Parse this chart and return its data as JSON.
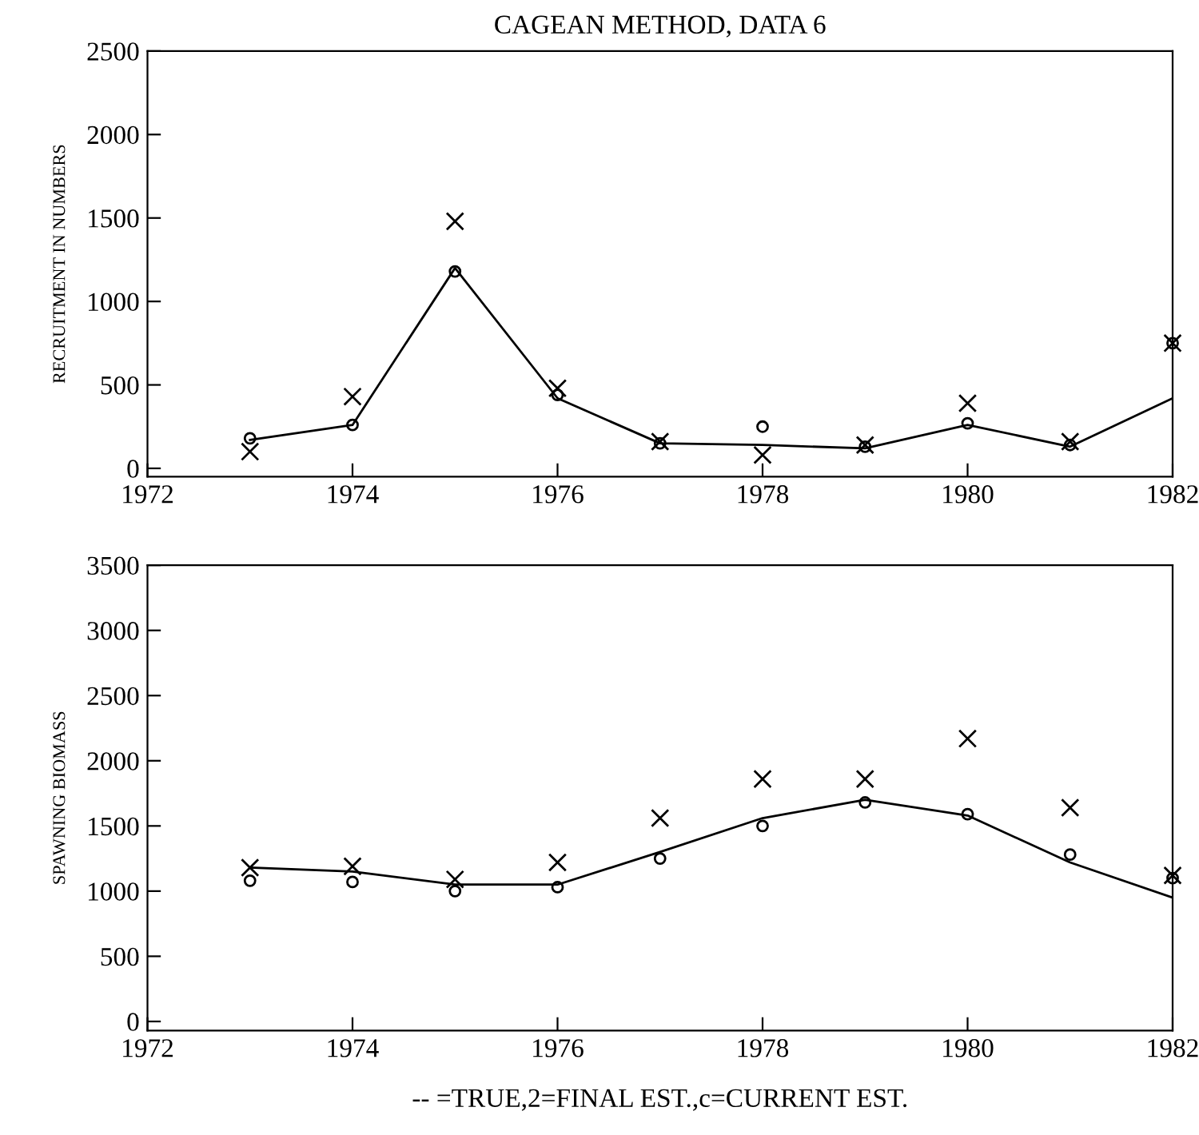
{
  "chart_data": [
    {
      "type": "line",
      "title": "CAGEAN METHOD, DATA 6",
      "ylabel": "RECRUITMENT IN NUMBERS",
      "x": [
        1973,
        1974,
        1975,
        1976,
        1977,
        1978,
        1979,
        1980,
        1981,
        1982
      ],
      "xlim": [
        1972,
        1982
      ],
      "xticks": [
        1972,
        1974,
        1976,
        1978,
        1980,
        1982
      ],
      "ylim": [
        -50,
        2500
      ],
      "yticks": [
        0,
        500,
        1000,
        1500,
        2000,
        2500
      ],
      "grid": false,
      "legend": false,
      "series": [
        {
          "marker": "none",
          "color": "#000000",
          "values": [
            170,
            260,
            1200,
            420,
            150,
            140,
            120,
            260,
            130,
            420
          ]
        },
        {
          "type": "scatter",
          "marker": "circle",
          "color": "#000000",
          "values": [
            180,
            260,
            1180,
            440,
            150,
            250,
            130,
            270,
            140,
            750
          ]
        },
        {
          "type": "scatter",
          "marker": "cross",
          "color": "#000000",
          "values": [
            100,
            430,
            1480,
            480,
            160,
            80,
            140,
            390,
            160,
            750
          ]
        }
      ]
    },
    {
      "type": "line",
      "ylabel": "SPAWNING BIOMASS",
      "annotations": [
        "-- =TRUE,2=FINAL EST.,c=CURRENT EST."
      ],
      "x": [
        1973,
        1974,
        1975,
        1976,
        1977,
        1978,
        1979,
        1980,
        1981,
        1982
      ],
      "xlim": [
        1972,
        1982
      ],
      "xticks": [
        1972,
        1974,
        1976,
        1978,
        1980,
        1982
      ],
      "ylim": [
        -70,
        3500
      ],
      "yticks": [
        0,
        500,
        1000,
        1500,
        2000,
        2500,
        3000,
        3500
      ],
      "grid": false,
      "legend": false,
      "series": [
        {
          "marker": "none",
          "color": "#000000",
          "values": [
            1180,
            1150,
            1050,
            1050,
            1300,
            1560,
            1700,
            1580,
            1220,
            950
          ]
        },
        {
          "type": "scatter",
          "marker": "circle",
          "color": "#000000",
          "values": [
            1080,
            1070,
            1000,
            1030,
            1250,
            1500,
            1680,
            1590,
            1280,
            1100
          ]
        },
        {
          "type": "scatter",
          "marker": "cross",
          "color": "#000000",
          "values": [
            1180,
            1190,
            1090,
            1220,
            1560,
            1860,
            1860,
            2170,
            1640,
            1120
          ]
        }
      ]
    }
  ]
}
